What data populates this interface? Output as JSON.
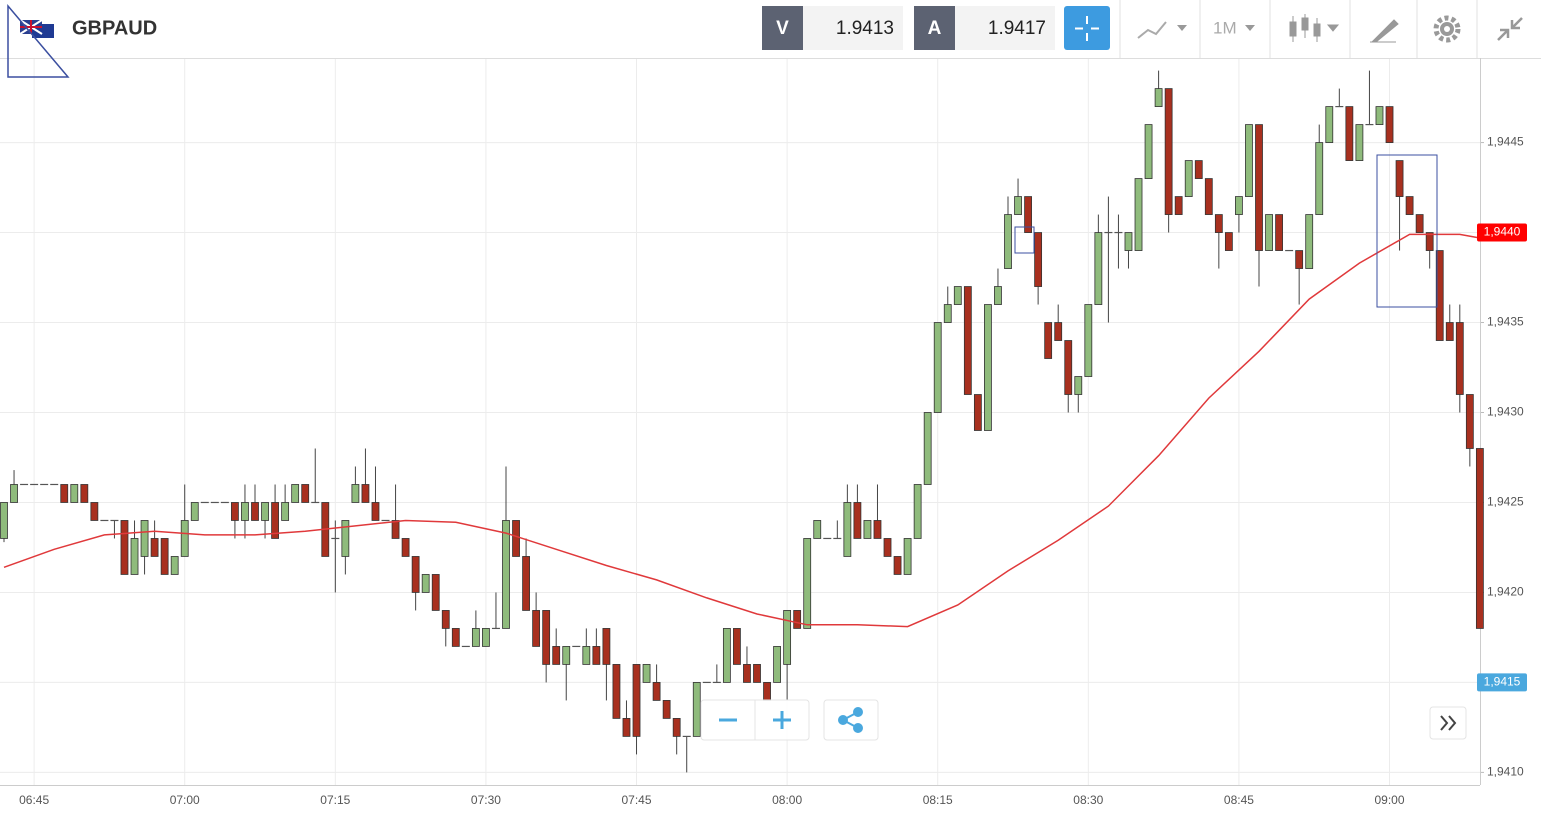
{
  "toolbar": {
    "symbol": "GBPAUD",
    "bid_label": "V",
    "bid": "1.9413",
    "ask_label": "A",
    "ask": "1.9417",
    "timeframe": "1M"
  },
  "chart_data": {
    "type": "candlestick",
    "categories": [
      null,
      null,
      null,
      "06:45",
      null,
      null,
      null,
      null,
      null,
      null,
      null,
      null,
      null,
      null,
      null,
      null,
      null,
      null,
      "07:00",
      null,
      null,
      null,
      null,
      null,
      null,
      null,
      null,
      null,
      null,
      null,
      null,
      null,
      null,
      "07:15",
      null,
      null,
      null,
      null,
      null,
      null,
      null,
      null,
      null,
      null,
      null,
      null,
      null,
      null,
      "07:30",
      null,
      null,
      null,
      null,
      null,
      null,
      null,
      null,
      null,
      null,
      null,
      null,
      null,
      null,
      "07:45",
      null,
      null,
      null,
      null,
      null,
      null,
      null,
      null,
      null,
      null,
      null,
      null,
      null,
      null,
      "08:00",
      null,
      null,
      null,
      null,
      null,
      null,
      null,
      null,
      null,
      null,
      null,
      null,
      null,
      null,
      "08:15",
      null,
      null,
      null,
      null,
      null,
      null,
      null,
      null,
      null,
      null,
      null,
      null,
      null,
      null,
      "08:30",
      null,
      null,
      null,
      null,
      null,
      null,
      null,
      null,
      null,
      null,
      null,
      null,
      null,
      null,
      "08:45",
      null,
      null,
      null,
      null,
      null,
      null,
      null,
      null,
      null,
      null,
      null,
      null,
      null,
      null,
      "09:00",
      null,
      null,
      null,
      null,
      null,
      null,
      null,
      null,
      null
    ],
    "open": [
      1.9423,
      1.9425,
      1.9426,
      1.9426,
      1.9426,
      1.9426,
      1.9426,
      1.9425,
      1.9426,
      1.9425,
      1.9424,
      1.9424,
      1.9424,
      1.9421,
      1.9422,
      1.9423,
      1.9423,
      1.9421,
      1.9422,
      1.9424,
      1.9425,
      1.9425,
      1.9425,
      1.9425,
      1.9424,
      1.9425,
      1.9424,
      1.9425,
      1.9424,
      1.9425,
      1.9426,
      1.9425,
      1.9425,
      1.9423,
      1.9422,
      1.9425,
      1.9426,
      1.9425,
      1.9424,
      1.9424,
      1.9423,
      1.9422,
      1.942,
      1.9421,
      1.9419,
      1.9418,
      1.9417,
      1.9417,
      1.9417,
      1.9418,
      1.9418,
      1.9424,
      1.9422,
      1.9419,
      1.9419,
      1.9417,
      1.9416,
      1.9417,
      1.9416,
      1.9417,
      1.9418,
      1.9416,
      1.9413,
      1.9416,
      1.9415,
      1.9415,
      1.9414,
      1.9413,
      1.9412,
      1.9412,
      1.9415,
      1.9415,
      1.9415,
      1.9418,
      1.9416,
      1.9416,
      1.9415,
      1.9415,
      1.9416,
      1.9419,
      1.9418,
      1.9423,
      1.9423,
      1.9423,
      1.9422,
      1.9425,
      1.9423,
      1.9424,
      1.9423,
      1.9422,
      1.9421,
      1.9423,
      1.9426,
      1.943,
      1.9435,
      1.9436,
      1.9437,
      1.9431,
      1.9429,
      1.9436,
      1.9438,
      1.9441,
      1.9442,
      1.944,
      1.9435,
      1.9435,
      1.9434,
      1.9431,
      1.9432,
      1.9436,
      1.944,
      1.944,
      1.9439,
      1.9439,
      1.9443,
      1.9447,
      1.9448,
      1.9442,
      1.9442,
      1.9444,
      1.9443,
      1.9441,
      1.944,
      1.9441,
      1.9442,
      1.9446,
      1.9439,
      1.9441,
      1.9439,
      1.9439,
      1.9438,
      1.9441,
      1.9445,
      1.9447,
      1.9447,
      1.9444,
      1.9446,
      1.9446,
      1.9447,
      1.9444,
      1.9442,
      1.9441,
      1.944,
      1.9439,
      1.9435,
      1.9435,
      1.9431,
      1.9428
    ],
    "high": [
      1.9425,
      1.94268,
      1.9426,
      1.9426,
      1.9426,
      1.9426,
      1.9426,
      1.9426,
      1.9426,
      1.9425,
      1.9424,
      1.9424,
      1.9424,
      1.9424,
      1.9424,
      1.9424,
      1.9423,
      1.9422,
      1.9426,
      1.9425,
      1.9425,
      1.9425,
      1.9425,
      1.9425,
      1.9426,
      1.9426,
      1.9425,
      1.9426,
      1.9426,
      1.9426,
      1.9426,
      1.9428,
      1.9425,
      1.9424,
      1.9424,
      1.9427,
      1.9428,
      1.9427,
      1.9424,
      1.9426,
      1.9423,
      1.9422,
      1.9421,
      1.9421,
      1.9419,
      1.9418,
      1.9417,
      1.9419,
      1.9418,
      1.942,
      1.9427,
      1.9424,
      1.9423,
      1.942,
      1.9419,
      1.9418,
      1.9417,
      1.9417,
      1.9418,
      1.9418,
      1.9418,
      1.9416,
      1.9414,
      1.9416,
      1.9416,
      1.9416,
      1.9414,
      1.9413,
      1.9412,
      1.9415,
      1.9415,
      1.9416,
      1.9418,
      1.9418,
      1.9417,
      1.9416,
      1.9415,
      1.9417,
      1.9419,
      1.9419,
      1.9423,
      1.9424,
      1.9423,
      1.9424,
      1.9426,
      1.9426,
      1.9424,
      1.9426,
      1.9423,
      1.9422,
      1.9423,
      1.9426,
      1.943,
      1.9435,
      1.9437,
      1.9437,
      1.9437,
      1.9431,
      1.9436,
      1.9438,
      1.9442,
      1.9443,
      1.9442,
      1.944,
      1.9435,
      1.9436,
      1.9434,
      1.9432,
      1.9436,
      1.9441,
      1.9442,
      1.9441,
      1.944,
      1.9443,
      1.9446,
      1.9449,
      1.9448,
      1.9442,
      1.9444,
      1.9444,
      1.9443,
      1.9441,
      1.944,
      1.9442,
      1.9446,
      1.9446,
      1.9441,
      1.9441,
      1.9439,
      1.9439,
      1.9441,
      1.9446,
      1.9447,
      1.9448,
      1.9447,
      1.9446,
      1.9449,
      1.9447,
      1.9447,
      1.9444,
      1.9442,
      1.9441,
      1.944,
      1.9439,
      1.9436,
      1.9436,
      1.9431,
      1.9428
    ],
    "low": [
      1.94228,
      1.9425,
      1.9426,
      1.9426,
      1.9426,
      1.9426,
      1.9425,
      1.9425,
      1.9425,
      1.9424,
      1.9424,
      1.9423,
      1.9421,
      1.9421,
      1.9421,
      1.9422,
      1.9421,
      1.9421,
      1.9422,
      1.9424,
      1.9425,
      1.9425,
      1.9425,
      1.9423,
      1.9423,
      1.9424,
      1.9423,
      1.9423,
      1.9424,
      1.9425,
      1.9425,
      1.9425,
      1.9422,
      1.942,
      1.9421,
      1.9425,
      1.9425,
      1.9424,
      1.9424,
      1.9423,
      1.9422,
      1.9419,
      1.942,
      1.9419,
      1.9417,
      1.9417,
      1.9417,
      1.9417,
      1.9417,
      1.9418,
      1.9418,
      1.9422,
      1.9419,
      1.9417,
      1.9415,
      1.9416,
      1.9414,
      1.9417,
      1.9416,
      1.9416,
      1.9414,
      1.9413,
      1.9412,
      1.9411,
      1.9415,
      1.9414,
      1.9413,
      1.9411,
      1.941,
      1.9412,
      1.9415,
      1.9415,
      1.9415,
      1.9416,
      1.9415,
      1.9415,
      1.9414,
      1.9415,
      1.9414,
      1.9418,
      1.9418,
      1.9423,
      1.9423,
      1.9423,
      1.9422,
      1.9423,
      1.9423,
      1.9423,
      1.9422,
      1.9421,
      1.9421,
      1.9423,
      1.9426,
      1.943,
      1.9435,
      1.9436,
      1.9431,
      1.9429,
      1.9429,
      1.9436,
      1.9438,
      1.9441,
      1.944,
      1.9436,
      1.9433,
      1.9434,
      1.943,
      1.943,
      1.9432,
      1.9436,
      1.9435,
      1.9438,
      1.9438,
      1.9439,
      1.9443,
      1.9447,
      1.944,
      1.9441,
      1.9442,
      1.9443,
      1.9441,
      1.9438,
      1.9439,
      1.944,
      1.9442,
      1.9437,
      1.9439,
      1.9439,
      1.9439,
      1.9436,
      1.9438,
      1.9441,
      1.9445,
      1.9447,
      1.9444,
      1.9444,
      1.9446,
      1.9446,
      1.9445,
      1.9439,
      1.9441,
      1.944,
      1.9438,
      1.9434,
      1.9434,
      1.943,
      1.9427,
      1.9418
    ],
    "close": [
      1.9425,
      1.9426,
      1.9426,
      1.9426,
      1.9426,
      1.9426,
      1.9425,
      1.9426,
      1.9425,
      1.9424,
      1.9424,
      1.9424,
      1.9421,
      1.9423,
      1.9424,
      1.9422,
      1.9421,
      1.9422,
      1.9424,
      1.9425,
      1.9425,
      1.9425,
      1.9425,
      1.9424,
      1.9425,
      1.9424,
      1.9425,
      1.9423,
      1.9425,
      1.9426,
      1.9425,
      1.9425,
      1.9422,
      1.9423,
      1.9424,
      1.9426,
      1.9425,
      1.9424,
      1.9424,
      1.9423,
      1.9422,
      1.942,
      1.9421,
      1.9419,
      1.9418,
      1.9417,
      1.9417,
      1.9418,
      1.9418,
      1.9418,
      1.9424,
      1.9422,
      1.9419,
      1.9417,
      1.9416,
      1.9416,
      1.9417,
      1.9417,
      1.9417,
      1.9416,
      1.9416,
      1.9413,
      1.9412,
      1.9412,
      1.9416,
      1.9414,
      1.9413,
      1.9412,
      1.9412,
      1.9415,
      1.9415,
      1.9415,
      1.9418,
      1.9416,
      1.9415,
      1.9415,
      1.9414,
      1.9417,
      1.9419,
      1.9418,
      1.9423,
      1.9424,
      1.9423,
      1.9423,
      1.9425,
      1.9423,
      1.9424,
      1.9423,
      1.9422,
      1.9421,
      1.9423,
      1.9426,
      1.943,
      1.9435,
      1.9436,
      1.9437,
      1.9431,
      1.9429,
      1.9436,
      1.9437,
      1.9441,
      1.9442,
      1.944,
      1.9437,
      1.9433,
      1.9434,
      1.9431,
      1.9432,
      1.9436,
      1.944,
      1.944,
      1.944,
      1.944,
      1.9443,
      1.9446,
      1.9448,
      1.9441,
      1.9441,
      1.9444,
      1.9443,
      1.9441,
      1.944,
      1.9439,
      1.9442,
      1.9446,
      1.9439,
      1.9441,
      1.9439,
      1.9439,
      1.9438,
      1.9441,
      1.9445,
      1.9447,
      1.9447,
      1.9444,
      1.9446,
      1.9446,
      1.9447,
      1.9445,
      1.9442,
      1.9441,
      1.944,
      1.9439,
      1.9434,
      1.9434,
      1.9431,
      1.9428,
      1.9418
    ],
    "up_color": "#8fbb7c",
    "down_color": "#a8301f",
    "moving_average": {
      "color": "#e0393b",
      "x": [
        0,
        5,
        10,
        15,
        20,
        25,
        30,
        35,
        40,
        45,
        50,
        55,
        60,
        65,
        70,
        75,
        80,
        85,
        90,
        95,
        100,
        105,
        110,
        115,
        120,
        125,
        130,
        135,
        140,
        145,
        147
      ],
      "values": [
        1.94214,
        1.94224,
        1.94232,
        1.94234,
        1.94232,
        1.94232,
        1.94234,
        1.94237,
        1.9424,
        1.94239,
        1.94233,
        1.94224,
        1.94215,
        1.94207,
        1.94197,
        1.94188,
        1.94182,
        1.94182,
        1.94181,
        1.94193,
        1.94212,
        1.94229,
        1.94248,
        1.94276,
        1.94308,
        1.94334,
        1.94363,
        1.94383,
        1.94399,
        1.94399,
        1.94397
      ]
    },
    "ylim": [
      1.94093,
      1.94497
    ],
    "yticks": [
      {
        "value": 1.941,
        "label": "1,9410"
      },
      {
        "value": 1.9415,
        "label": "1,9415"
      },
      {
        "value": 1.942,
        "label": "1,9420"
      },
      {
        "value": 1.9425,
        "label": "1,9425"
      },
      {
        "value": 1.943,
        "label": "1,9430"
      },
      {
        "value": 1.9435,
        "label": "1,9435"
      },
      {
        "value": 1.944,
        "label": "1,9440"
      },
      {
        "value": 1.9445,
        "label": "1,9445"
      }
    ],
    "price_labels": [
      {
        "value": 1.944,
        "label": "1,9440",
        "color": "#ff0000"
      },
      {
        "value": 1.9415,
        "label": "1,9415",
        "color": "#4aa8de"
      }
    ],
    "grid": true
  }
}
